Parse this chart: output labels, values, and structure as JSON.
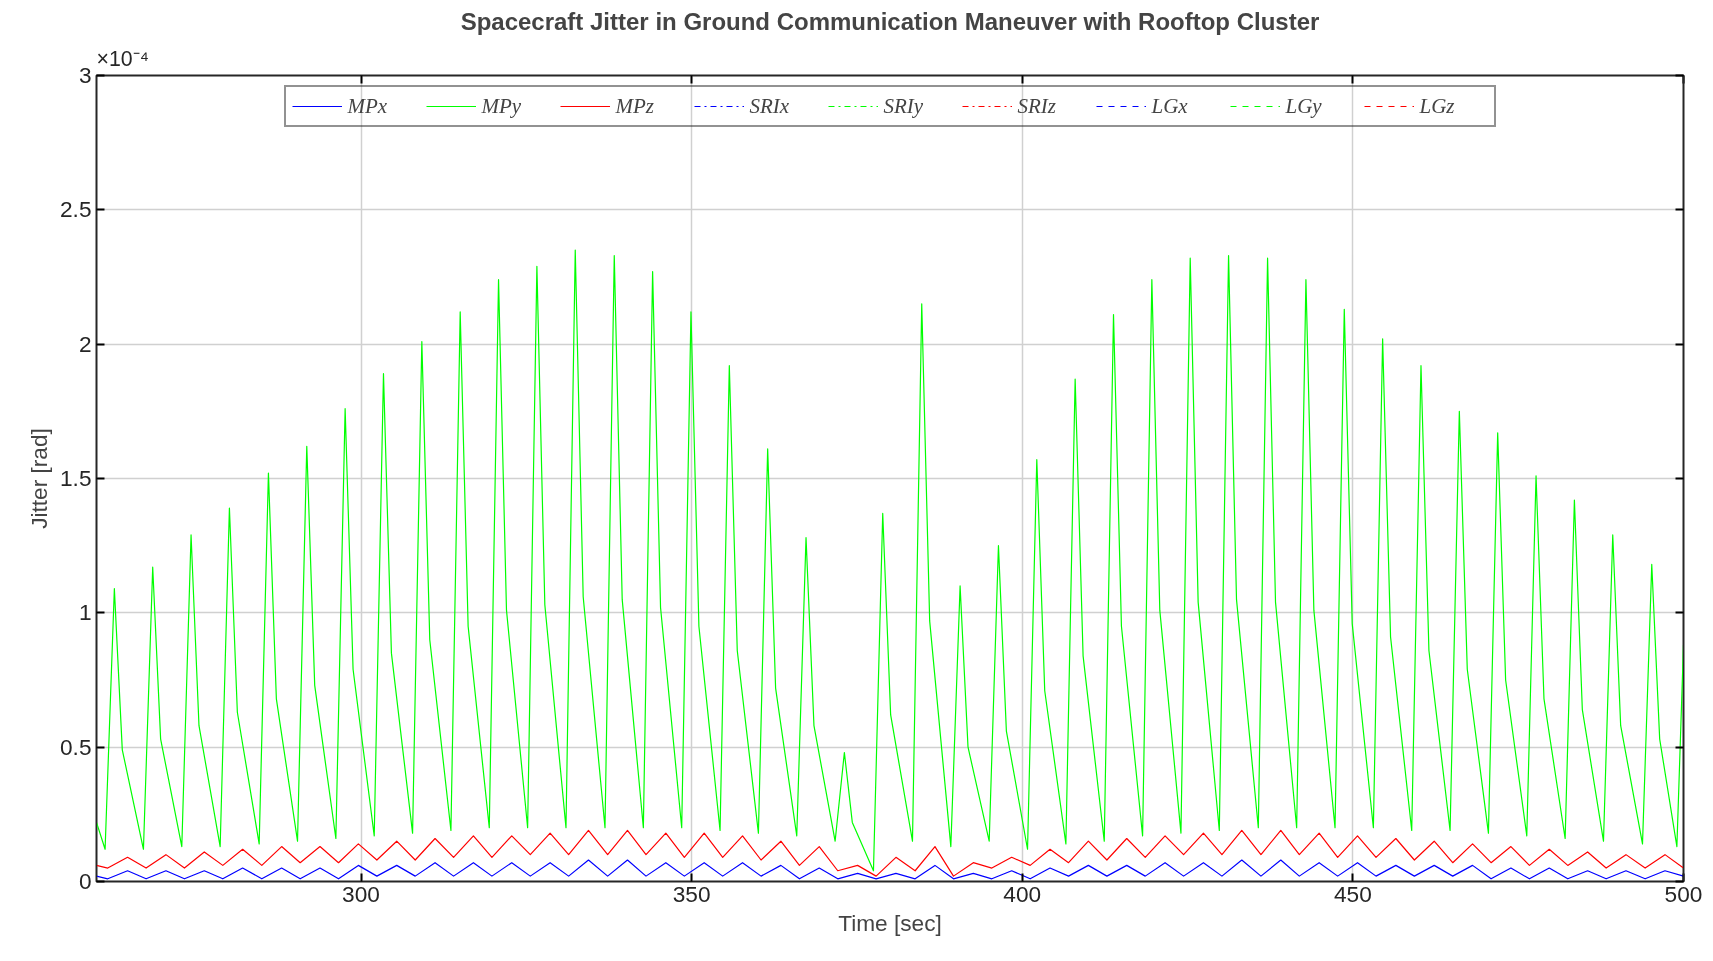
{
  "chart_data": {
    "type": "line",
    "title": "Spacecraft Jitter in Ground Communication Maneuver with Rooftop Cluster",
    "xlabel": "Time [sec]",
    "ylabel": "Jitter [rad]",
    "annotations": [
      "×10⁻⁴"
    ],
    "xlim": [
      260,
      500
    ],
    "xticks": [
      300,
      350,
      400,
      450,
      500
    ],
    "ylim": [
      0,
      3
    ],
    "yticks": [
      0,
      0.5,
      1,
      1.5,
      2,
      2.5,
      3
    ],
    "grid": true,
    "legend": "top",
    "marker": "none",
    "series": [
      {
        "name": "MPx",
        "color": "#0000ff",
        "line_style": "solid",
        "x": [
          260,
          261.7,
          264.7,
          267.5,
          270.5,
          273.3,
          276.3,
          279.1,
          282.1,
          285.0,
          288.0,
          290.8,
          293.8,
          296.6,
          299.6,
          302.4,
          305.4,
          308.2,
          311.2,
          314.0,
          317.0,
          319.8,
          322.8,
          325.6,
          328.6,
          331.4,
          334.4,
          337.3,
          340.3,
          343.1,
          346.1,
          348.9,
          351.9,
          354.7,
          357.7,
          360.5,
          363.5,
          366.3,
          369.3,
          372.1,
          375.1,
          377.9,
          380.9,
          383.8,
          386.8,
          389.6,
          392.6,
          395.4,
          398.4,
          401.2,
          404.2,
          407.0,
          410.0,
          412.8,
          415.8,
          418.6,
          421.6,
          424.4,
          427.4,
          430.2,
          433.2,
          436.1,
          439.1,
          441.9,
          444.9,
          447.7,
          450.7,
          453.5,
          456.5,
          459.3,
          462.3,
          465.1,
          468.1,
          470.9,
          473.9,
          476.7,
          479.7,
          482.5,
          485.5,
          488.3,
          491.3,
          494.2,
          497.2,
          500
        ],
        "values": [
          0.02,
          0.01,
          0.04,
          0.01,
          0.04,
          0.01,
          0.04,
          0.01,
          0.05,
          0.01,
          0.05,
          0.01,
          0.05,
          0.01,
          0.06,
          0.02,
          0.06,
          0.02,
          0.07,
          0.02,
          0.07,
          0.02,
          0.07,
          0.02,
          0.07,
          0.02,
          0.08,
          0.02,
          0.08,
          0.02,
          0.07,
          0.02,
          0.07,
          0.02,
          0.07,
          0.02,
          0.06,
          0.01,
          0.05,
          0.01,
          0.03,
          0.01,
          0.03,
          0.01,
          0.06,
          0.01,
          0.03,
          0.01,
          0.04,
          0.01,
          0.05,
          0.02,
          0.06,
          0.02,
          0.06,
          0.02,
          0.07,
          0.02,
          0.07,
          0.02,
          0.08,
          0.02,
          0.08,
          0.02,
          0.07,
          0.02,
          0.07,
          0.02,
          0.06,
          0.02,
          0.06,
          0.02,
          0.06,
          0.01,
          0.05,
          0.01,
          0.05,
          0.01,
          0.04,
          0.01,
          0.04,
          0.01,
          0.04,
          0.02
        ]
      },
      {
        "name": "MPy",
        "color": "#00ff00",
        "line_style": "solid",
        "x": [
          260,
          261.3,
          262.7,
          263.9,
          267.1,
          268.5,
          269.7,
          272.9,
          274.3,
          275.5,
          278.7,
          280.1,
          281.3,
          284.6,
          286.0,
          287.2,
          290.4,
          291.8,
          293.0,
          296.2,
          297.6,
          298.8,
          302.0,
          303.4,
          304.6,
          307.8,
          309.2,
          310.4,
          313.6,
          315.0,
          316.2,
          319.4,
          320.8,
          322.0,
          325.2,
          326.6,
          327.8,
          331.0,
          332.4,
          333.6,
          336.9,
          338.3,
          339.5,
          342.7,
          344.1,
          345.3,
          348.5,
          349.9,
          351.1,
          354.3,
          355.7,
          356.9,
          360.1,
          361.5,
          362.7,
          365.9,
          367.3,
          368.5,
          371.7,
          373.1,
          374.3,
          377.5,
          378.9,
          380.1,
          383.4,
          384.8,
          386.0,
          389.2,
          390.6,
          391.8,
          395.0,
          396.4,
          397.6,
          400.8,
          402.2,
          403.4,
          406.6,
          408.0,
          409.2,
          412.4,
          413.8,
          415.0,
          418.2,
          419.6,
          420.8,
          424.0,
          425.4,
          426.6,
          429.8,
          431.2,
          432.4,
          435.7,
          437.1,
          438.3,
          441.5,
          442.9,
          444.1,
          447.3,
          448.7,
          449.9,
          453.1,
          454.5,
          455.7,
          458.9,
          460.3,
          461.5,
          464.7,
          466.1,
          467.3,
          470.5,
          471.9,
          473.1,
          476.3,
          477.7,
          478.9,
          482.1,
          483.5,
          484.7,
          487.9,
          489.3,
          490.5,
          493.8,
          495.2,
          496.4,
          499.0,
          500
        ],
        "values": [
          0.22,
          0.12,
          1.09,
          0.49,
          0.12,
          1.17,
          0.53,
          0.13,
          1.29,
          0.58,
          0.13,
          1.39,
          0.63,
          0.14,
          1.52,
          0.68,
          0.15,
          1.62,
          0.73,
          0.16,
          1.76,
          0.79,
          0.17,
          1.89,
          0.85,
          0.18,
          2.01,
          0.9,
          0.19,
          2.12,
          0.95,
          0.2,
          2.24,
          1.01,
          0.2,
          2.29,
          1.03,
          0.2,
          2.35,
          1.06,
          0.2,
          2.33,
          1.05,
          0.2,
          2.27,
          1.02,
          0.2,
          2.12,
          0.95,
          0.19,
          1.92,
          0.86,
          0.18,
          1.61,
          0.72,
          0.17,
          1.28,
          0.58,
          0.15,
          0.48,
          0.22,
          0.04,
          1.37,
          0.62,
          0.15,
          2.15,
          0.97,
          0.13,
          1.1,
          0.5,
          0.15,
          1.25,
          0.56,
          0.12,
          1.57,
          0.71,
          0.14,
          1.87,
          0.84,
          0.15,
          2.11,
          0.95,
          0.17,
          2.24,
          1.01,
          0.18,
          2.32,
          1.04,
          0.19,
          2.33,
          1.05,
          0.2,
          2.32,
          1.04,
          0.2,
          2.24,
          1.01,
          0.2,
          2.13,
          0.96,
          0.2,
          2.02,
          0.91,
          0.19,
          1.92,
          0.86,
          0.19,
          1.75,
          0.79,
          0.18,
          1.67,
          0.75,
          0.17,
          1.51,
          0.68,
          0.16,
          1.42,
          0.64,
          0.15,
          1.29,
          0.58,
          0.14,
          1.18,
          0.53,
          0.13,
          0.88
        ]
      },
      {
        "name": "MPz",
        "color": "#ff0000",
        "line_style": "solid",
        "x": [
          260,
          261.7,
          264.7,
          267.5,
          270.5,
          273.3,
          276.3,
          279.1,
          282.1,
          285.0,
          288.0,
          290.8,
          293.8,
          296.6,
          299.6,
          302.4,
          305.4,
          308.2,
          311.2,
          314.0,
          317.0,
          319.8,
          322.8,
          325.6,
          328.6,
          331.4,
          334.4,
          337.3,
          340.3,
          343.1,
          346.1,
          348.9,
          351.9,
          354.7,
          357.7,
          360.5,
          363.5,
          366.3,
          369.3,
          372.1,
          375.1,
          377.9,
          380.9,
          383.8,
          386.8,
          389.6,
          392.6,
          395.4,
          398.4,
          401.2,
          404.2,
          407.0,
          410.0,
          412.8,
          415.8,
          418.6,
          421.6,
          424.4,
          427.4,
          430.2,
          433.2,
          436.1,
          439.1,
          441.9,
          444.9,
          447.7,
          450.7,
          453.5,
          456.5,
          459.3,
          462.3,
          465.1,
          468.1,
          470.9,
          473.9,
          476.7,
          479.7,
          482.5,
          485.5,
          488.3,
          491.3,
          494.2,
          497.2,
          500
        ],
        "values": [
          0.06,
          0.05,
          0.09,
          0.05,
          0.1,
          0.05,
          0.11,
          0.06,
          0.12,
          0.06,
          0.13,
          0.07,
          0.13,
          0.07,
          0.14,
          0.08,
          0.15,
          0.08,
          0.16,
          0.09,
          0.17,
          0.09,
          0.17,
          0.1,
          0.18,
          0.1,
          0.19,
          0.1,
          0.19,
          0.1,
          0.18,
          0.09,
          0.18,
          0.09,
          0.17,
          0.08,
          0.15,
          0.06,
          0.13,
          0.04,
          0.06,
          0.02,
          0.09,
          0.04,
          0.13,
          0.02,
          0.07,
          0.05,
          0.09,
          0.06,
          0.12,
          0.07,
          0.15,
          0.08,
          0.16,
          0.09,
          0.17,
          0.1,
          0.18,
          0.1,
          0.19,
          0.1,
          0.19,
          0.1,
          0.18,
          0.09,
          0.17,
          0.09,
          0.16,
          0.08,
          0.15,
          0.07,
          0.14,
          0.07,
          0.13,
          0.06,
          0.12,
          0.06,
          0.11,
          0.05,
          0.1,
          0.05,
          0.1,
          0.05
        ]
      },
      {
        "name": "SRIx",
        "color": "#0000ff",
        "line_style": "dashdot"
      },
      {
        "name": "SRIy",
        "color": "#00ff00",
        "line_style": "dashdot"
      },
      {
        "name": "SRIz",
        "color": "#ff0000",
        "line_style": "dashdot"
      },
      {
        "name": "LGx",
        "color": "#0000ff",
        "line_style": "dashed"
      },
      {
        "name": "LGy",
        "color": "#00ff00",
        "line_style": "dashed"
      },
      {
        "name": "LGz",
        "color": "#ff0000",
        "line_style": "dashed"
      }
    ]
  }
}
